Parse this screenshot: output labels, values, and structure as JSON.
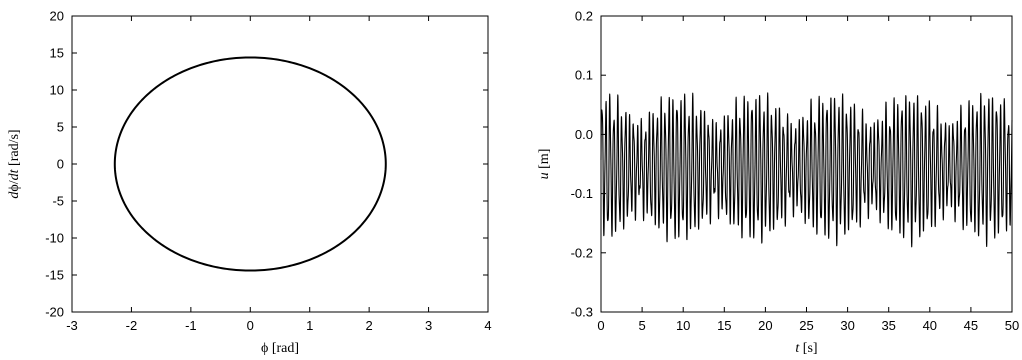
{
  "chart_data": [
    {
      "type": "line",
      "subtype": "phase-portrait",
      "title": "",
      "xlabel_segments": [
        {
          "text": "ϕ",
          "italic": false
        },
        {
          "text": " [rad]",
          "italic": false
        }
      ],
      "ylabel_segments": [
        {
          "text": "d",
          "italic": true
        },
        {
          "text": "ϕ",
          "italic": false
        },
        {
          "text": "/",
          "italic": false
        },
        {
          "text": "dt",
          "italic": true
        },
        {
          "text": " [rad/s]",
          "italic": false
        }
      ],
      "xlim": [
        -3,
        4
      ],
      "ylim": [
        -20,
        20
      ],
      "xticks": [
        -3,
        -2,
        -1,
        0,
        1,
        2,
        3,
        4
      ],
      "yticks": [
        -20,
        -15,
        -10,
        -5,
        0,
        5,
        10,
        15,
        20
      ],
      "xtick_labels": [
        "-3",
        "-2",
        "-1",
        "0",
        "1",
        "2",
        "3",
        "4"
      ],
      "ytick_labels": [
        "-20",
        "-15",
        "-10",
        "-5",
        "0",
        "5",
        "10",
        "15",
        "20"
      ],
      "grid": false,
      "series": [
        {
          "curve": "closed-orbit",
          "center": [
            0,
            0
          ],
          "x_amplitude": 2.28,
          "y_amplitude": 14.4,
          "color": "#000000"
        }
      ]
    },
    {
      "type": "line",
      "subtype": "time-series",
      "title": "",
      "xlabel_segments": [
        {
          "text": "t",
          "italic": true
        },
        {
          "text": " [s]",
          "italic": false
        }
      ],
      "ylabel_segments": [
        {
          "text": "u",
          "italic": true
        },
        {
          "text": " [m]",
          "italic": false
        }
      ],
      "xlim": [
        0,
        50
      ],
      "ylim": [
        -0.3,
        0.2
      ],
      "xticks": [
        0,
        5,
        10,
        15,
        20,
        25,
        30,
        35,
        40,
        45,
        50
      ],
      "yticks": [
        -0.3,
        -0.2,
        -0.1,
        0.0,
        0.1,
        0.2
      ],
      "xtick_labels": [
        "0",
        "5",
        "10",
        "15",
        "20",
        "25",
        "30",
        "35",
        "40",
        "45",
        "50"
      ],
      "ytick_labels": [
        "-0.3",
        "-0.2",
        "-0.1",
        "0.0",
        "0.1",
        "0.2"
      ],
      "grid": false,
      "series": [
        {
          "curve": "oscillation",
          "mean": -0.06,
          "min": -0.19,
          "max": 0.07,
          "fast_period": 0.48,
          "beat_period": 9.4,
          "color": "#000000"
        }
      ]
    }
  ]
}
